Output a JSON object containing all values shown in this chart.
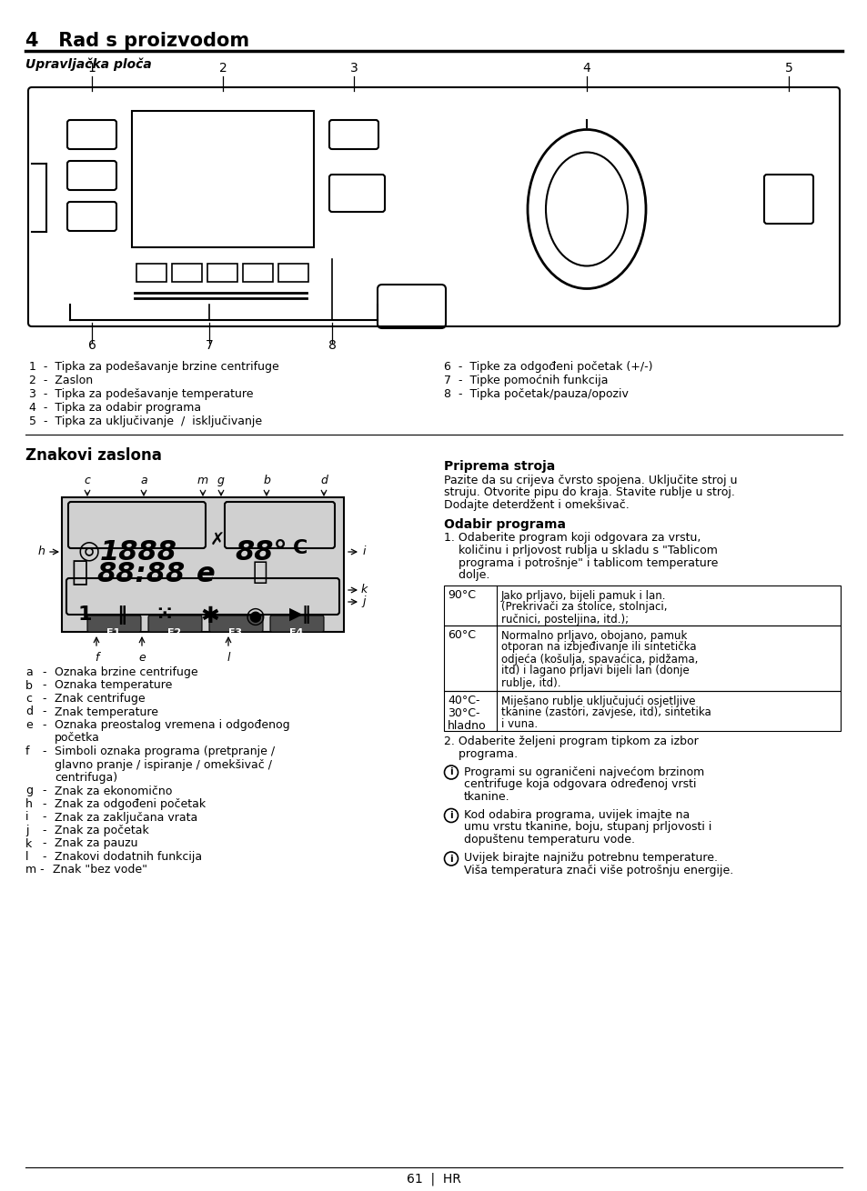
{
  "title": "4   Rad s proizvodom",
  "subtitle": "Upravljačka ploča",
  "bg_color": "#ffffff",
  "list_left": [
    "1  -  Tipka za podešavanje brzine centrifuge",
    "2  -  Zaslon",
    "3  -  Tipka za podešavanje temperature",
    "4  -  Tipka za odabir programa",
    "5  -  Tipka za uključivanje  /  isključivanje"
  ],
  "list_right": [
    "6  -  Tipke za odgođeni početak (+/-)",
    "7  -  Tipke pomoćnih funkcija",
    "8  -  Tipka početak/pauza/opoziv"
  ],
  "section_znakovi": "Znakovi zaslona",
  "legend_left": [
    [
      "a",
      "Oznaka brzine centrifuge"
    ],
    [
      "b",
      "Oznaka temperature"
    ],
    [
      "c",
      "Znak centrifuge"
    ],
    [
      "d",
      "Znak temperature"
    ],
    [
      "e",
      "Oznaka preostalog vremena i odgođenog\npočetka"
    ],
    [
      "f",
      "Simboli oznaka programa (pretpranje /\nglavno pranje / ispiranje / omekšivač /\ncentrifuga)"
    ],
    [
      "g",
      "Znak za ekonomično"
    ],
    [
      "h",
      "Znak za odgođeni početak"
    ],
    [
      "i",
      "Znak za zaključana vrata"
    ],
    [
      "j",
      "Znak za početak"
    ],
    [
      "k",
      "Znak za pauzu"
    ],
    [
      "l",
      "Znakovi dodatnih funkcija"
    ],
    [
      "m",
      "Znak \"bez vode\""
    ]
  ],
  "section_priprema": "Priprema stroja",
  "priprema_text": "Pazite da su crijeva čvrsto spojena. Uključite stroj u\nstruju. Otvorite pipu do kraja. Stavite rublje u stroj.\nDodajte deterdžent i omekšivač.",
  "section_odabir": "Odabir programa",
  "odabir_text1_lines": [
    "1. Odaberite program koji odgovara za vrstu,",
    "    količinu i prljovost rublja u skladu s \"Tablicom",
    "    programa i potrošnje\" i tablicom temperature",
    "    dolje."
  ],
  "table_rows": [
    {
      "temp": "90°C",
      "desc_lines": [
        "Jako prljavo, bijeli pamuk i lan.",
        "(Prekrivači za stolice, stolnjaci,",
        "ručnici, posteljina, itd.);"
      ]
    },
    {
      "temp": "60°C",
      "desc_lines": [
        "Normalno prljavo, obojano, pamuk",
        "otporan na izbjeđivanje ili sintetička",
        "odjeća (košulja, spavaćica, pidžama,",
        "itd) i lagano prljavi bijeli lan (donje",
        "rublje, itd)."
      ]
    },
    {
      "temp": "40°C-\n30°C-\nhladno",
      "desc_lines": [
        "Miješano rublje uključujući osjetljive",
        "tkanine (zastori, zavjese, itd), sintetika",
        "i vuna."
      ]
    }
  ],
  "odabir_text2_lines": [
    "2. Odaberite željeni program tipkom za izbor",
    "    programa."
  ],
  "info_texts": [
    [
      "Programi su ograničeni najvećom brzinom",
      "centrifuge koja odgovara određenoj vrsti",
      "tkanine."
    ],
    [
      "Kod odabira programa, uvijek imajte na",
      "umu vrstu tkanine, boju, stupanj prljovosti i",
      "dopuštenu temperaturu vode."
    ],
    [
      "Uvijek birajte najnižu potrebnu temperature.",
      "Viša temperatura znači više potrošnju energije."
    ]
  ],
  "footer": "61  |  HR"
}
